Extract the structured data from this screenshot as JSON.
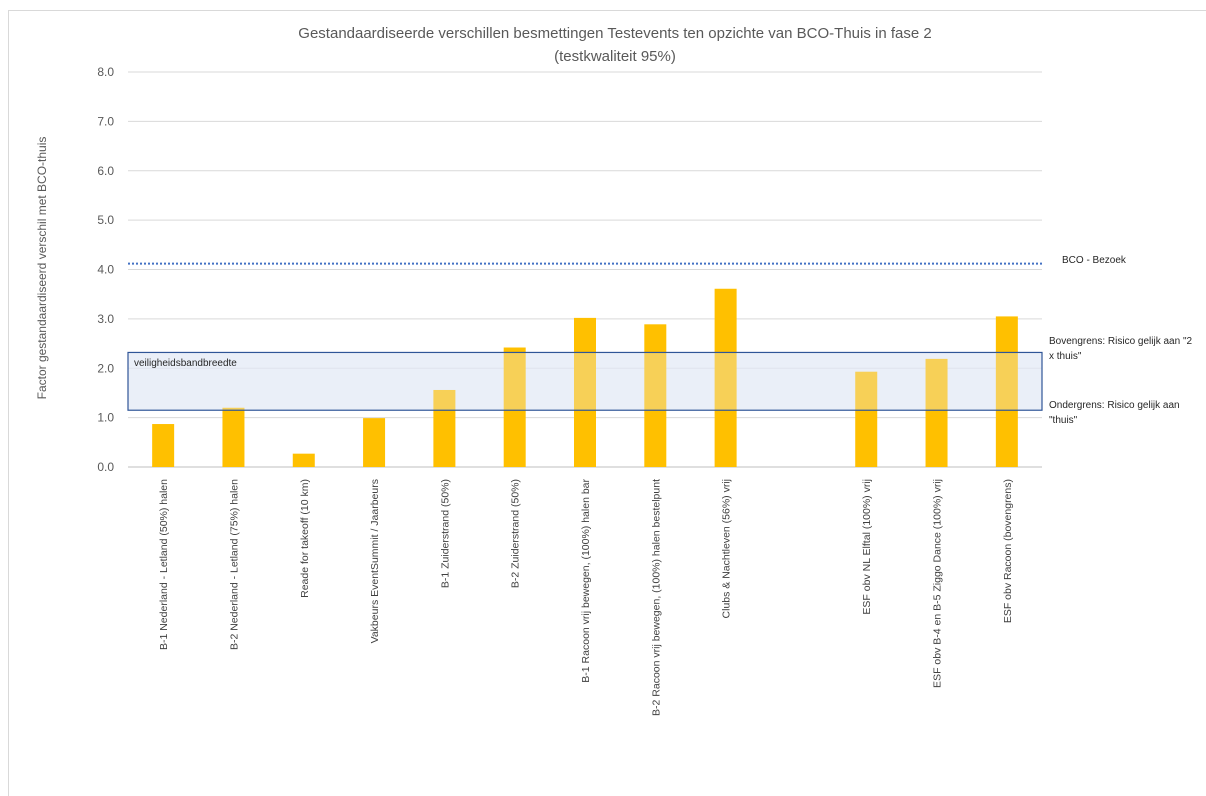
{
  "chart_data": {
    "type": "bar",
    "title": "Gestandaardiseerde verschillen besmettingen Testevents ten opzichte van BCO-Thuis in fase 2",
    "subtitle": "(testkwaliteit 95%)",
    "ylabel": "Factor gestandaardiseerd verschil met BCO-thuis",
    "xlabel": "",
    "ylim": [
      0,
      8
    ],
    "yticks": [
      "0.0",
      "1.0",
      "2.0",
      "3.0",
      "4.0",
      "5.0",
      "6.0",
      "7.0",
      "8.0"
    ],
    "grid": true,
    "categories": [
      "B-1 Nederland - Letland (50%) halen",
      "B-2 Nederland - Letland (75%) halen",
      "Reade for takeoff (10 km)",
      "Vakbeurs EventSummit / Jaarbeurs",
      "B-1 Zuiderstrand (50%)",
      "B-2 Zuiderstrand (50%)",
      "B-1 Racoon vrij bewegen, (100%) halen bar",
      "B-2 Racoon vrij bewegen, (100%) halen bestelpunt",
      "Clubs & Nachtleven (56%) vrij",
      "",
      "ESF obv NL Elftal (100%) vrij",
      "ESF obv B-4 en B-5 Ziggo Dance (100%) vrij",
      "ESF obv Racoon (bovengrens)"
    ],
    "values": [
      0.87,
      1.2,
      0.27,
      0.99,
      1.56,
      2.42,
      3.02,
      2.89,
      3.61,
      null,
      1.93,
      2.19,
      3.05
    ],
    "bar_color": "#ffc000",
    "reference_line": {
      "label": "BCO - Bezoek",
      "value": 4.12,
      "color": "#4472c4"
    },
    "band": {
      "label": "veiligheidsbandbreedte",
      "lower": 1.15,
      "upper": 2.32,
      "upper_label_lines": [
        "Bovengrens: Risico gelijk aan \"2",
        "x thuis\""
      ],
      "lower_label_lines": [
        "Ondergrens: Risico gelijk aan",
        "\"thuis\""
      ],
      "fill": "#dae3f3",
      "border": "#2f5597"
    }
  }
}
